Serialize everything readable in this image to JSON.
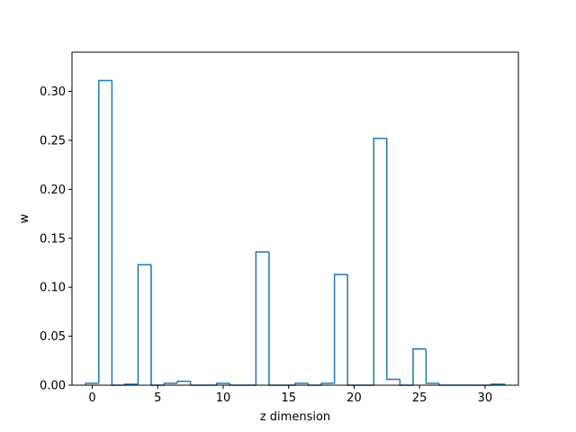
{
  "chart_data": {
    "type": "bar",
    "style": "step-outline",
    "xlabel": "z dimension",
    "ylabel": "w",
    "xlim": [
      -1.55,
      32.55
    ],
    "ylim": [
      0.0,
      0.34
    ],
    "x_ticks": [
      0,
      5,
      10,
      15,
      20,
      25,
      30
    ],
    "y_ticks": [
      0.0,
      0.05,
      0.1,
      0.15,
      0.2,
      0.25,
      0.3
    ],
    "y_tick_labels": [
      "0.00",
      "0.05",
      "0.10",
      "0.15",
      "0.20",
      "0.25",
      "0.30"
    ],
    "grid": false,
    "color": "#1f77b4",
    "x": [
      0,
      1,
      2,
      3,
      4,
      5,
      6,
      7,
      8,
      9,
      10,
      11,
      12,
      13,
      14,
      15,
      16,
      17,
      18,
      19,
      20,
      21,
      22,
      23,
      24,
      25,
      26,
      27,
      28,
      29,
      30,
      31
    ],
    "values": [
      0.002,
      0.311,
      0.0,
      0.001,
      0.123,
      0.0,
      0.002,
      0.004,
      0.0,
      0.0,
      0.002,
      0.0,
      0.0,
      0.136,
      0.0,
      0.0,
      0.002,
      0.0,
      0.002,
      0.113,
      0.0,
      0.0,
      0.252,
      0.006,
      0.0,
      0.037,
      0.002,
      0.0,
      0.0,
      0.0,
      0.0,
      0.001
    ]
  }
}
